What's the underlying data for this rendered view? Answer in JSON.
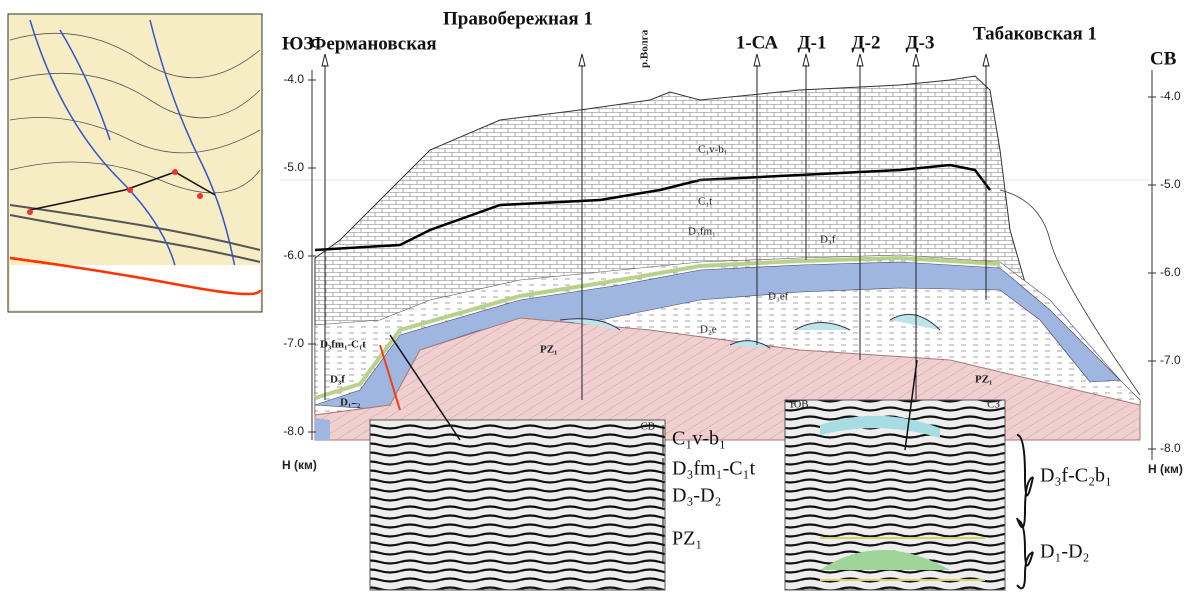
{
  "header": {
    "left_direction": "ЮЗ",
    "right_direction": "СВ",
    "river": "р.Волга"
  },
  "wells": [
    {
      "label": "Фермановская"
    },
    {
      "label": "Правобережная 1"
    },
    {
      "label": "1-СА"
    },
    {
      "label": "Д-1"
    },
    {
      "label": "Д-2"
    },
    {
      "label": "Д-3"
    },
    {
      "label": "Табаковская 1"
    }
  ],
  "depth_scale": {
    "ticks": [
      "-4.0",
      "-5.0",
      "-6.0",
      "-7.0",
      "-8.0"
    ],
    "unit": "H (км)"
  },
  "section_labels": [
    "C₁v-b₁",
    "C₁t",
    "D₃fm₁",
    "D₃f",
    "D₃ef",
    "D₂e",
    "PZ₁",
    "D₃fm₁-C₁t",
    "D₃f",
    "D₁₋₂",
    "PZ₁"
  ],
  "seismic_left": {
    "corner": "СВ",
    "labels": [
      "C₁v-b₁",
      "D₃fm₁-C₁t",
      "D₃-D₂",
      "PZ₁"
    ]
  },
  "seismic_right": {
    "corner_left": "ЮВ",
    "corner_right": "СЗ",
    "labels": [
      "D₃f-C₂b₁",
      "D₁-D₂"
    ]
  }
}
